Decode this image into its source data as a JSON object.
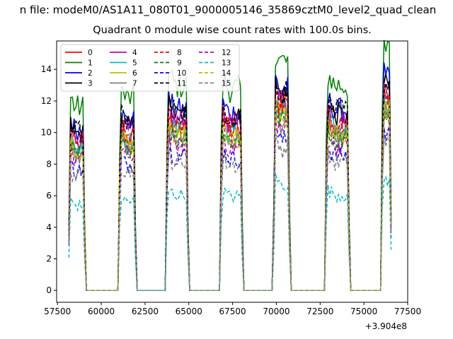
{
  "chart_data": {
    "type": "line",
    "suptitle": "n file: modeM0/AS1A11_080T01_9000005146_35869cztM0_level2_quad_clean",
    "title": "Quadrant 0 module wise count rates with 100.0s bins.",
    "xlabel": "",
    "ylabel": "",
    "x_offset_label": "+3.904e8",
    "xlim": [
      57450,
      77500
    ],
    "ylim": [
      -0.75,
      15.8
    ],
    "xticks": [
      57500,
      60000,
      62500,
      65000,
      67500,
      70000,
      72500,
      75000,
      77500
    ],
    "yticks": [
      0,
      2,
      4,
      6,
      8,
      10,
      12,
      14
    ],
    "grid": false,
    "legend_placement": "top-left",
    "legend_columns": 4,
    "orbit_windows": [
      [
        58150,
        59050
      ],
      [
        61000,
        61950
      ],
      [
        63700,
        64950
      ],
      [
        66800,
        68050
      ],
      [
        69850,
        70750
      ],
      [
        72800,
        74150
      ],
      [
        76000,
        76550
      ]
    ],
    "series": [
      {
        "name": "0",
        "color": "#ff0000",
        "dash": "solid",
        "level": 9.2
      },
      {
        "name": "1",
        "color": "#008000",
        "dash": "solid",
        "level": 11.6
      },
      {
        "name": "2",
        "color": "#0000ff",
        "dash": "solid",
        "level": 10.2
      },
      {
        "name": "3",
        "color": "#000000",
        "dash": "solid",
        "level": 9.9
      },
      {
        "name": "4",
        "color": "#bf00bf",
        "dash": "solid",
        "level": 9.6
      },
      {
        "name": "5",
        "color": "#00bfbf",
        "dash": "solid",
        "level": 9.0
      },
      {
        "name": "6",
        "color": "#bfbf00",
        "dash": "solid",
        "level": 8.8
      },
      {
        "name": "7",
        "color": "#808080",
        "dash": "solid",
        "level": 8.5
      },
      {
        "name": "8",
        "color": "#ff0000",
        "dash": "dashed",
        "level": 9.4
      },
      {
        "name": "9",
        "color": "#008000",
        "dash": "dashed",
        "level": 8.6
      },
      {
        "name": "10",
        "color": "#0000ff",
        "dash": "dashed",
        "level": 7.6
      },
      {
        "name": "11",
        "color": "#000000",
        "dash": "dashed",
        "level": 10.1
      },
      {
        "name": "12",
        "color": "#bf00bf",
        "dash": "dashed",
        "level": 8.2
      },
      {
        "name": "13",
        "color": "#00bfbf",
        "dash": "dashed",
        "level": 5.4
      },
      {
        "name": "14",
        "color": "#bfbf00",
        "dash": "dashed",
        "level": 8.8
      },
      {
        "name": "15",
        "color": "#808080",
        "dash": "dashed",
        "level": 7.2
      }
    ]
  }
}
